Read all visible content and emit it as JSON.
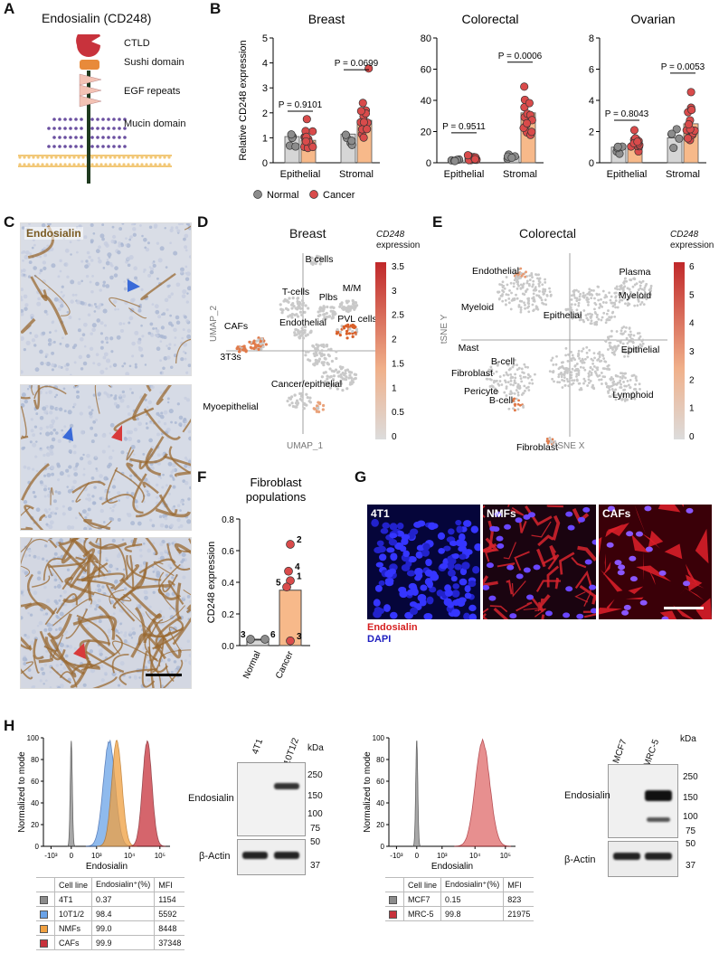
{
  "panels": {
    "A": {
      "letter": "A",
      "title": "Endosialin (CD248)",
      "domains": [
        "CTLD",
        "Sushi domain",
        "EGF repeats",
        "Mucin domain"
      ]
    },
    "B": {
      "letter": "B"
    },
    "C": {
      "letter": "C",
      "stain_label": "Endosialin"
    },
    "D": {
      "letter": "D",
      "title": "Breast",
      "colorbar_title_1": "CD248",
      "colorbar_title_2": "expression",
      "colorbar_ticks": [
        "3.5",
        "3",
        "2.5",
        "2",
        "1.5",
        "1",
        "0.5",
        "0"
      ],
      "xlabel": "UMAP_1",
      "ylabel": "UMAP_2",
      "clusters": [
        "B cells",
        "T-cells",
        "Plbs",
        "M/M",
        "PVL cells",
        "CAFs",
        "3T3s",
        "Endothelial",
        "Myoepithelial",
        "Cancer/epithelial"
      ]
    },
    "E": {
      "letter": "E",
      "title": "Colorectal",
      "colorbar_title_1": "CD248",
      "colorbar_title_2": "expression",
      "colorbar_ticks": [
        "6",
        "5",
        "4",
        "3",
        "2",
        "1",
        "0"
      ],
      "xlabel": "tSNE X",
      "ylabel": "tSNE Y",
      "clusters": [
        "Endothelial",
        "Myeloid",
        "Plasma",
        "Myeloid",
        "Epithelial",
        "Mast",
        "B-cell",
        "Epithelial",
        "Fibroblast",
        "Pericyte",
        "B-cell",
        "Lymphoid",
        "Fibroblast"
      ]
    },
    "F": {
      "letter": "F"
    },
    "G": {
      "letter": "G",
      "images": [
        "4T1",
        "NMFs",
        "CAFs"
      ],
      "stain1": "Endosialin",
      "stain2": "DAPI"
    },
    "H": {
      "letter": "H",
      "flow1": {
        "ylabel": "Normalized to mode",
        "xlabel": "Endosialin",
        "yticks": [
          "100",
          "80",
          "60",
          "40",
          "20",
          "0"
        ],
        "xticks": [
          "-10³",
          "0",
          "10³",
          "10⁴",
          "10⁵"
        ],
        "table_headers": [
          "Cell line",
          "Endosialin⁺(%)",
          "MFI"
        ],
        "rows": [
          {
            "name": "4T1",
            "pct": "0.37",
            "mfi": "1154",
            "color": "#8c8c8c"
          },
          {
            "name": "10T1/2",
            "pct": "98.4",
            "mfi": "5592",
            "color": "#6aa3e8"
          },
          {
            "name": "NMFs",
            "pct": "99.0",
            "mfi": "8448",
            "color": "#f0a040"
          },
          {
            "name": "CAFs",
            "pct": "99.9",
            "mfi": "37348",
            "color": "#c8323c"
          }
        ]
      },
      "blot1": {
        "lanes": [
          "4T1",
          "10T1/2"
        ],
        "kda": "kDa",
        "target": "Endosialin",
        "loading": "β-Actin",
        "markers_top": [
          "250",
          "150",
          "100",
          "75"
        ],
        "markers_bottom": [
          "50",
          "37"
        ]
      },
      "flow2": {
        "ylabel": "Normalized to mode",
        "xlabel": "Endosialin",
        "yticks": [
          "100",
          "80",
          "60",
          "40",
          "20",
          "0"
        ],
        "xticks": [
          "-10³",
          "0",
          "10³",
          "10⁴",
          "10⁵"
        ],
        "table_headers": [
          "Cell line",
          "Endosialin⁺(%)",
          "MFI"
        ],
        "rows": [
          {
            "name": "MCF7",
            "pct": "0.15",
            "mfi": "823",
            "color": "#8c8c8c"
          },
          {
            "name": "MRC-5",
            "pct": "99.8",
            "mfi": "21975",
            "color": "#c8323c"
          }
        ]
      },
      "blot2": {
        "lanes": [
          "MCF7",
          "MRC-5"
        ],
        "kda": "kDa",
        "target": "Endosialin",
        "loading": "β-Actin",
        "markers_top": [
          "250",
          "150",
          "100",
          "75"
        ],
        "markers_bottom": [
          "50",
          "37"
        ]
      }
    }
  },
  "chart_data": [
    {
      "type": "bar",
      "title": "Breast",
      "ylabel": "Relative CD248 expression",
      "ylim": [
        0,
        5
      ],
      "yticks": [
        "0",
        "1",
        "2",
        "3",
        "4",
        "5"
      ],
      "categories": [
        "Epithelial",
        "Stromal"
      ],
      "series": [
        {
          "name": "Normal",
          "color": "#8c8c8c",
          "values": [
            1.05,
            1.15
          ]
        },
        {
          "name": "Cancer",
          "color": "#d94b4b",
          "values": [
            0.9,
            1.7
          ]
        }
      ],
      "pvalues": [
        "P = 0.9101",
        "P = 0.0699"
      ]
    },
    {
      "type": "bar",
      "title": "Colorectal",
      "ylim": [
        0,
        80
      ],
      "yticks": [
        "0",
        "20",
        "40",
        "60",
        "80"
      ],
      "categories": [
        "Epithelial",
        "Stromal"
      ],
      "series": [
        {
          "name": "Normal",
          "color": "#8c8c8c",
          "values": [
            1.5,
            4
          ]
        },
        {
          "name": "Cancer",
          "color": "#d94b4b",
          "values": [
            3,
            32
          ]
        }
      ],
      "pvalues": [
        "P = 0.9511",
        "P = 0.0006"
      ]
    },
    {
      "type": "bar",
      "title": "Ovarian",
      "ylim": [
        0,
        8
      ],
      "yticks": [
        "0",
        "2",
        "4",
        "6",
        "8"
      ],
      "categories": [
        "Epithelial",
        "Stromal"
      ],
      "series": [
        {
          "name": "Normal",
          "color": "#8c8c8c",
          "values": [
            1.0,
            1.6
          ]
        },
        {
          "name": "Cancer",
          "color": "#d94b4b",
          "values": [
            1.1,
            2.5
          ]
        }
      ],
      "pvalues": [
        "P = 0.8043",
        "P = 0.0053"
      ]
    },
    {
      "type": "bar",
      "title": "Fibroblast populations",
      "ylabel": "CD248 expression",
      "ylim": [
        0,
        0.8
      ],
      "yticks": [
        "0.0",
        "0.2",
        "0.4",
        "0.6",
        "0.8"
      ],
      "categories": [
        "Normal",
        "Cancer"
      ],
      "values": [
        0.035,
        0.35
      ],
      "points": [
        {
          "cat": "Normal",
          "y": 0.04,
          "label": "3"
        },
        {
          "cat": "Normal",
          "y": 0.04,
          "label": "6"
        },
        {
          "cat": "Cancer",
          "y": 0.64,
          "label": "2"
        },
        {
          "cat": "Cancer",
          "y": 0.47,
          "label": "4"
        },
        {
          "cat": "Cancer",
          "y": 0.41,
          "label": "1"
        },
        {
          "cat": "Cancer",
          "y": 0.37,
          "label": "5"
        },
        {
          "cat": "Cancer",
          "y": 0.03,
          "label": "3"
        }
      ]
    }
  ],
  "legend_B": [
    {
      "name": "Normal",
      "color": "#8c8c8c"
    },
    {
      "name": "Cancer",
      "color": "#d94b4b"
    }
  ]
}
